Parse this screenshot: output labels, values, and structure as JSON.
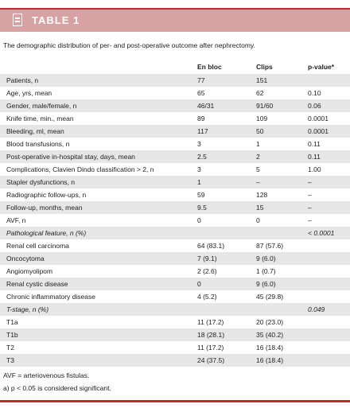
{
  "header": {
    "title": "TABLE 1"
  },
  "caption": "The demographic distribution of per- and post-operative outcome after nephrectomy.",
  "table": {
    "columns": [
      "En bloc",
      "Clips",
      "p-value*"
    ],
    "rows": [
      [
        "Patients, n",
        "77",
        "151",
        null
      ],
      [
        "Age, yrs, mean",
        "65",
        "62",
        "0.10"
      ],
      [
        "Gender, male/female, n",
        "46/31",
        "91/60",
        "0.06"
      ],
      [
        "Knife time, min., mean",
        "89",
        "109",
        "0.0001"
      ],
      [
        "Bleeding, ml, mean",
        "117",
        "50",
        "0.0001"
      ],
      [
        "Blood transfusions, n",
        "3",
        "1",
        "0.11"
      ],
      [
        "Post-operative in-hospital stay, days, mean",
        "2.5",
        "2",
        "0.11"
      ],
      [
        "Complications, Clavien Dindo classification > 2, n",
        "3",
        "5",
        "1.00"
      ],
      [
        "Stapler dysfunctions, n",
        "1",
        "–",
        "–"
      ],
      [
        "Radiographic follow-ups, n",
        "59",
        "128",
        "–"
      ],
      [
        "Follow-up, months, mean",
        "9.5",
        "15",
        "–"
      ],
      [
        "AVF, n",
        "0",
        "0",
        "–"
      ],
      [
        "Pathological feature, n (%)",
        null,
        null,
        "< 0.0001"
      ],
      [
        "Renal cell carcinoma",
        "64 (83.1)",
        "87 (57.6)",
        null
      ],
      [
        "Oncocytoma",
        "7 (9.1)",
        "9 (6.0)",
        null
      ],
      [
        "Angiomyolipom",
        "2 (2.6)",
        "1 (0.7)",
        null
      ],
      [
        "Renal cystic disease",
        "0",
        "9 (6.0)",
        null
      ],
      [
        "Chronic inflammatory disease",
        "4 (5.2)",
        "45 (29.8)",
        null
      ],
      [
        "T-stage, n (%)",
        null,
        null,
        "0.049"
      ],
      [
        "T1a",
        "11 (17.2)",
        "20 (23.0)",
        null
      ],
      [
        "T1b",
        "18 (28.1)",
        "35 (40.2)",
        null
      ],
      [
        "T2",
        "11 (17.2)",
        "16 (18.4)",
        null
      ],
      [
        "T3",
        "24 (37.5)",
        "16 (18.4)",
        null
      ]
    ],
    "section_rows": [
      12,
      18
    ]
  },
  "footnotes": [
    "AVF = arteriovenous fistulas.",
    "a) p < 0.05 is considered significant."
  ]
}
